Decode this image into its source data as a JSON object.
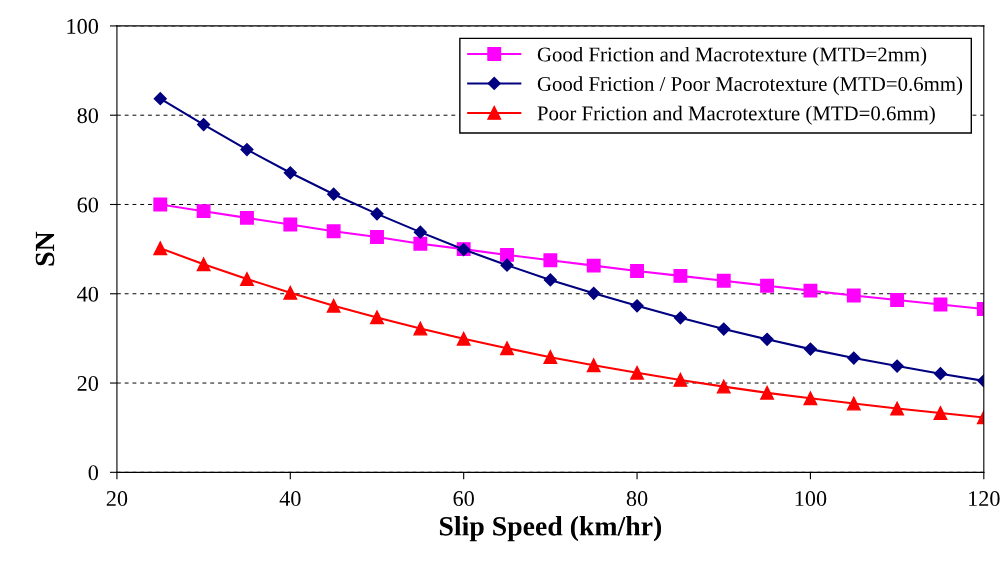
{
  "chart_data": {
    "type": "line",
    "xlabel": "Slip Speed (km/hr)",
    "ylabel": "SN",
    "x": [
      25,
      30,
      35,
      40,
      45,
      50,
      55,
      60,
      65,
      70,
      75,
      80,
      85,
      90,
      95,
      100,
      105,
      110,
      115,
      120
    ],
    "series": [
      {
        "name": "Good Friction and Macrotexture (MTD=2mm)",
        "color": "#ff00ff",
        "marker": "square",
        "values": [
          60,
          58.5,
          57,
          55.5,
          54,
          52.7,
          51.2,
          50,
          48.7,
          47.5,
          46.3,
          45.1,
          44,
          42.9,
          41.8,
          40.7,
          39.6,
          38.6,
          37.6,
          36.6
        ]
      },
      {
        "name": "Good Friction / Poor Macrotexture (MTD=0.6mm)",
        "color": "#000080",
        "marker": "diamond",
        "values": [
          83.7,
          77.9,
          72.3,
          67.1,
          62.3,
          57.9,
          53.8,
          49.9,
          46.4,
          43.1,
          40.1,
          37.3,
          34.6,
          32.1,
          29.8,
          27.6,
          25.6,
          23.8,
          22.1,
          20.5
        ]
      },
      {
        "name": "Poor Friction and Macrotexture (MTD=0.6mm)",
        "color": "#ff0000",
        "marker": "triangle",
        "values": [
          50.2,
          46.6,
          43.3,
          40.2,
          37.3,
          34.7,
          32.2,
          29.9,
          27.8,
          25.8,
          24,
          22.3,
          20.7,
          19.2,
          17.8,
          16.6,
          15.4,
          14.3,
          13.3,
          12.3
        ]
      }
    ],
    "xlim": [
      20,
      120
    ],
    "xticks": [
      20,
      40,
      60,
      80,
      100,
      120
    ],
    "ylim": [
      0,
      100
    ],
    "yticks": [
      0,
      20,
      40,
      60,
      80,
      100
    ],
    "grid": "y",
    "legend": "top right",
    "line_style": "solid"
  }
}
